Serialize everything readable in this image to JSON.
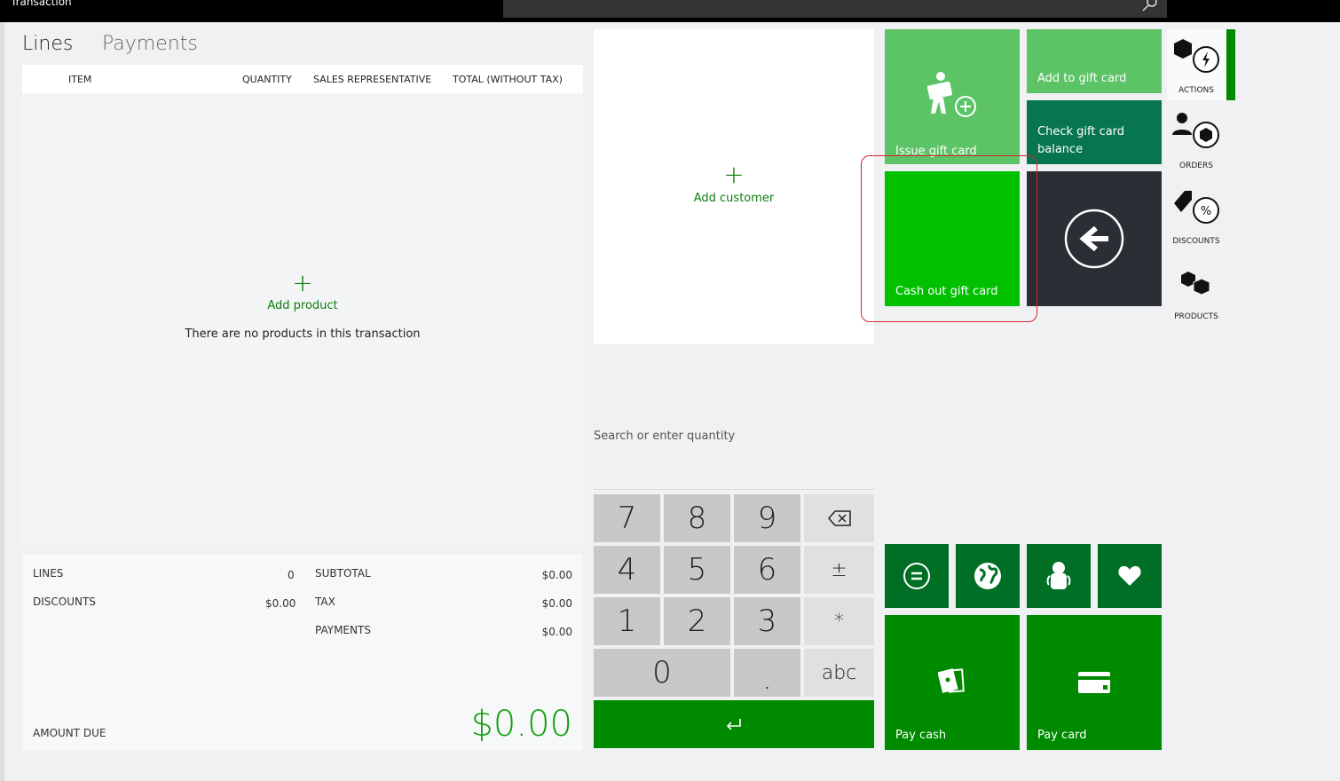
{
  "app": {
    "title": "Transaction"
  },
  "tabs": [
    {
      "label": "Lines"
    },
    {
      "label": "Payments"
    }
  ],
  "columns": [
    "ITEM",
    "QUANTITY",
    "SALES REPRESENTATIVE",
    "TOTAL (WITHOUT TAX)"
  ],
  "lines": {
    "add_label": "Add product",
    "empty_text": "There are no products in this transaction"
  },
  "totals": {
    "lines_label": "LINES",
    "lines_value": "0",
    "discounts_label": "DISCOUNTS",
    "discounts_value": "$0.00",
    "subtotal_label": "SUBTOTAL",
    "subtotal_value": "$0.00",
    "tax_label": "TAX",
    "tax_value": "$0.00",
    "payments_label": "PAYMENTS",
    "payments_value": "$0.00",
    "amount_due_label": "AMOUNT DUE",
    "amount_due_value": "$0.00"
  },
  "customer": {
    "add_label": "Add customer"
  },
  "search": {
    "placeholder": "Search or enter quantity"
  },
  "numpad": [
    "7",
    "8",
    "9",
    "4",
    "5",
    "6",
    "±",
    "1",
    "2",
    "3",
    "*",
    "0",
    ".",
    "abc"
  ],
  "tiles": {
    "issue": "Issue gift card",
    "add": "Add to gift card",
    "check": "Check gift card balance",
    "cashout": "Cash out gift card",
    "pay_cash": "Pay cash",
    "pay_card": "Pay card"
  },
  "sidebar": [
    {
      "label": "ACTIONS"
    },
    {
      "label": "ORDERS"
    },
    {
      "label": "DISCOUNTS"
    },
    {
      "label": "PRODUCTS"
    }
  ],
  "colors": {
    "light_green": "#5cc466",
    "dark_teal": "#077650",
    "bright_green": "#00c000",
    "dark": "#2b2e35",
    "green": "#008a00",
    "dark_green": "#006f25",
    "highlight": "#d9232d"
  }
}
